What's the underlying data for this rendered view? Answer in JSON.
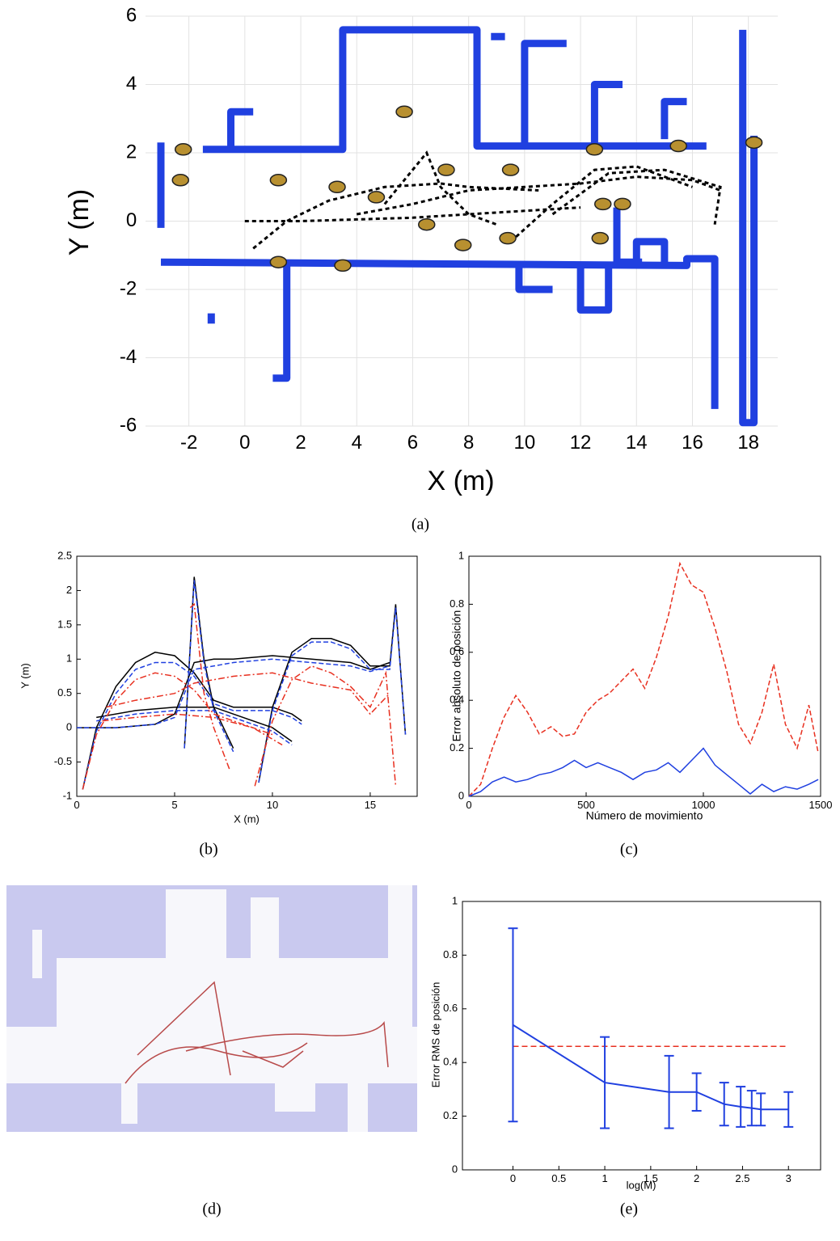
{
  "chart_data": [
    {
      "type": "map",
      "caption": "(a)",
      "xlabel": "X (m)",
      "ylabel": "Y (m)",
      "xlim": [
        -3.55,
        19.05
      ],
      "ylim": [
        -6,
        6
      ],
      "xticks": [
        -2,
        0,
        2,
        4,
        6,
        8,
        10,
        12,
        14,
        16,
        18
      ],
      "yticks": [
        -6,
        -4,
        -2,
        0,
        2,
        4,
        6
      ],
      "grid": true,
      "wall_color": "#2040e0",
      "trajectory_color": "#000000",
      "landmark_color": "#b89030",
      "walls": [
        {
          "x": [
            -1.5,
            3.5,
            3.5,
            8.3,
            8.3,
            16.5
          ],
          "y": [
            2.1,
            2.1,
            5.6,
            5.6,
            2.2,
            2.2
          ]
        },
        {
          "x": [
            -3,
            15.8,
            15.8,
            16.8,
            16.8
          ],
          "y": [
            -1.2,
            -1.3,
            -1.1,
            -1.1,
            -5.5
          ]
        },
        {
          "x": [
            -3,
            -3
          ],
          "y": [
            2.3,
            -0.2
          ]
        },
        {
          "x": [
            1.5,
            1.5,
            1.0
          ],
          "y": [
            -1.3,
            -4.6,
            -4.6
          ]
        },
        {
          "x": [
            -0.5,
            -0.5,
            0.3
          ],
          "y": [
            2.0,
            3.2,
            3.2
          ]
        },
        {
          "x": [
            17.8,
            17.8,
            18.2,
            18.2
          ],
          "y": [
            5.6,
            -5.9,
            -5.9,
            2.5
          ]
        },
        {
          "x": [
            10,
            10,
            11.5
          ],
          "y": [
            2.2,
            5.2,
            5.2
          ]
        },
        {
          "x": [
            12.5,
            12.5,
            13.5
          ],
          "y": [
            2.2,
            4,
            4
          ]
        },
        {
          "x": [
            15,
            15,
            15.8
          ],
          "y": [
            2.4,
            3.5,
            3.5
          ]
        },
        {
          "x": [
            8.8,
            9.3
          ],
          "y": [
            5.4,
            5.4
          ]
        },
        {
          "x": [
            12,
            12,
            13,
            13
          ],
          "y": [
            -1.3,
            -2.6,
            -2.6,
            -1.3
          ]
        },
        {
          "x": [
            9.8,
            9.8,
            11
          ],
          "y": [
            -1.3,
            -2,
            -2
          ]
        },
        {
          "x": [
            14,
            14,
            15,
            15
          ],
          "y": [
            -1.3,
            -0.6,
            -0.6,
            -1.3
          ]
        },
        {
          "x": [
            13.3,
            13.3,
            14.2
          ],
          "y": [
            0.4,
            -1.2,
            -1.2
          ]
        },
        {
          "x": [
            -1.2,
            -1.2
          ],
          "y": [
            -2.7,
            -3
          ]
        }
      ],
      "trajectories": [
        {
          "x": [
            0,
            2,
            4,
            6,
            8,
            10,
            12
          ],
          "y": [
            0,
            0,
            0.05,
            0.1,
            0.2,
            0.3,
            0.4
          ]
        },
        {
          "x": [
            0.3,
            1.5,
            3,
            5,
            7,
            8,
            10.5
          ],
          "y": [
            -0.8,
            0,
            0.6,
            1,
            1.1,
            1,
            0.9
          ]
        },
        {
          "x": [
            4,
            6,
            8,
            10,
            12,
            14,
            16,
            17
          ],
          "y": [
            0.2,
            0.5,
            0.9,
            1,
            1.1,
            1.3,
            1.2,
            0.9
          ]
        },
        {
          "x": [
            5,
            6.5,
            7,
            8,
            9
          ],
          "y": [
            0.5,
            2,
            1,
            0.2,
            -0.1
          ]
        },
        {
          "x": [
            11,
            12,
            13,
            15,
            17,
            16.8
          ],
          "y": [
            0.2,
            0.8,
            1.4,
            1.5,
            1,
            -0.1
          ]
        },
        {
          "x": [
            9.5,
            11,
            12.5,
            14,
            16
          ],
          "y": [
            -0.6,
            0.5,
            1.5,
            1.6,
            1
          ]
        }
      ],
      "landmarks": {
        "x": [
          -2.2,
          -2.3,
          1.2,
          3.5,
          3.3,
          4.7,
          7.2,
          9.5,
          7.8,
          9.4,
          12.8,
          13.5,
          12.7,
          15.5,
          18.2,
          6.5,
          1.2,
          12.5,
          5.7
        ],
        "y": [
          2.1,
          1.2,
          -1.2,
          -1.3,
          1.0,
          0.7,
          1.5,
          1.5,
          -0.7,
          -0.5,
          0.5,
          0.5,
          -0.5,
          2.2,
          2.3,
          -0.1,
          1.2,
          2.1,
          3.2
        ]
      }
    },
    {
      "type": "line",
      "caption": "(b)",
      "xlabel": "X (m)",
      "ylabel": "Y (m)",
      "xlim": [
        0,
        17.4
      ],
      "ylim": [
        -1,
        2.5
      ],
      "xticks": [
        0,
        5,
        10,
        15
      ],
      "yticks": [
        -1,
        -0.5,
        0,
        0.5,
        1,
        1.5,
        2,
        2.5
      ],
      "series": [
        {
          "color": "#000000",
          "dash": "solid",
          "x": [
            0.3,
            1,
            2,
            3,
            4,
            5,
            6,
            7,
            8,
            9,
            10,
            11,
            11.5,
            null,
            0,
            2,
            4,
            5,
            6,
            7,
            8,
            10,
            12,
            14,
            15,
            16,
            null,
            9.3,
            10,
            11,
            12,
            13,
            14,
            15,
            16,
            16.3,
            16.8,
            null,
            5.5,
            6,
            6.5,
            7,
            8,
            null,
            1,
            3,
            5,
            7,
            8,
            10,
            11
          ],
          "y": [
            -0.9,
            0,
            0.6,
            0.95,
            1.1,
            1.05,
            0.8,
            0.4,
            0.3,
            0.3,
            0.3,
            0.2,
            0.1,
            null,
            0,
            0,
            0.05,
            0.2,
            0.95,
            1.0,
            1.0,
            1.05,
            1.0,
            0.95,
            0.85,
            0.95,
            null,
            -0.8,
            0.3,
            1.1,
            1.3,
            1.3,
            1.2,
            0.9,
            0.9,
            1.8,
            -0.1,
            null,
            -0.3,
            2.2,
            1.0,
            0.3,
            -0.3,
            null,
            0.15,
            0.25,
            0.3,
            0.3,
            0.2,
            0,
            -0.2
          ]
        },
        {
          "color": "#2040e0",
          "dash": "dashed",
          "x": [
            0.3,
            1,
            2,
            3,
            4,
            5,
            6,
            7,
            8,
            9,
            10,
            11,
            11.5,
            null,
            0,
            2,
            4,
            5,
            6,
            7,
            8,
            10,
            12,
            14,
            15,
            16,
            null,
            9.3,
            10,
            11,
            12,
            13,
            14,
            15,
            16,
            16.3,
            16.8,
            null,
            5.5,
            6,
            6.5,
            7,
            8,
            null,
            1,
            3,
            5,
            7,
            8,
            10,
            11
          ],
          "y": [
            -0.9,
            -0.05,
            0.5,
            0.85,
            0.95,
            0.95,
            0.75,
            0.35,
            0.25,
            0.25,
            0.25,
            0.15,
            0.05,
            null,
            0,
            0,
            0.05,
            0.15,
            0.85,
            0.9,
            0.95,
            1.0,
            0.95,
            0.9,
            0.82,
            0.9,
            null,
            -0.8,
            0.25,
            1.05,
            1.25,
            1.25,
            1.15,
            0.85,
            0.85,
            1.75,
            -0.1,
            null,
            -0.3,
            2.15,
            0.95,
            0.25,
            -0.35,
            null,
            0.1,
            0.2,
            0.25,
            0.25,
            0.15,
            -0.05,
            -0.25
          ]
        },
        {
          "color": "#e83020",
          "dash": "dashdot",
          "x": [
            0.3,
            1,
            2,
            3,
            4,
            5,
            6,
            7,
            8,
            9,
            10,
            null,
            1.5,
            3,
            5,
            6,
            7,
            8,
            10,
            12,
            14,
            15,
            16,
            null,
            9.1,
            10,
            11,
            12,
            13,
            14,
            15,
            15.8,
            16.3,
            null,
            5.8,
            6,
            6.5,
            7,
            7.8,
            null,
            1.3,
            3,
            5,
            7,
            9,
            10.5
          ],
          "y": [
            -0.9,
            -0.1,
            0.4,
            0.7,
            0.8,
            0.75,
            0.55,
            0.2,
            0.1,
            0,
            -0.1,
            null,
            0.3,
            0.4,
            0.5,
            0.65,
            0.7,
            0.75,
            0.8,
            0.65,
            0.55,
            0.2,
            0.5,
            null,
            -0.85,
            0.1,
            0.7,
            0.9,
            0.8,
            0.6,
            0.3,
            0.8,
            -0.85,
            null,
            1.75,
            1.8,
            0.5,
            0,
            -0.6,
            null,
            0.1,
            0.15,
            0.2,
            0.15,
            0,
            -0.25
          ]
        }
      ]
    },
    {
      "type": "line",
      "caption": "(c)",
      "xlabel": "Número de movimiento",
      "ylabel": "Error absoluto de posición",
      "xlim": [
        0,
        1500
      ],
      "ylim": [
        0,
        1
      ],
      "xticks": [
        0,
        500,
        1000,
        1500
      ],
      "yticks": [
        0,
        0.2,
        0.4,
        0.6,
        0.8,
        1
      ],
      "series": [
        {
          "color": "#e83020",
          "dash": "dashed",
          "x": [
            0,
            50,
            100,
            150,
            200,
            250,
            300,
            350,
            400,
            450,
            500,
            550,
            600,
            650,
            700,
            750,
            800,
            850,
            900,
            950,
            1000,
            1050,
            1100,
            1150,
            1200,
            1250,
            1300,
            1350,
            1400,
            1450,
            1490
          ],
          "y": [
            0,
            0.05,
            0.2,
            0.33,
            0.42,
            0.35,
            0.26,
            0.29,
            0.25,
            0.26,
            0.35,
            0.4,
            0.43,
            0.48,
            0.53,
            0.45,
            0.58,
            0.75,
            0.97,
            0.88,
            0.85,
            0.7,
            0.52,
            0.3,
            0.22,
            0.35,
            0.55,
            0.3,
            0.2,
            0.38,
            0.18
          ]
        },
        {
          "color": "#2040e0",
          "dash": "solid",
          "x": [
            0,
            50,
            100,
            150,
            200,
            250,
            300,
            350,
            400,
            450,
            500,
            550,
            600,
            650,
            700,
            750,
            800,
            850,
            900,
            950,
            1000,
            1050,
            1100,
            1150,
            1200,
            1250,
            1300,
            1350,
            1400,
            1450,
            1490
          ],
          "y": [
            0,
            0.02,
            0.06,
            0.08,
            0.06,
            0.07,
            0.09,
            0.1,
            0.12,
            0.15,
            0.12,
            0.14,
            0.12,
            0.1,
            0.07,
            0.1,
            0.11,
            0.14,
            0.1,
            0.15,
            0.2,
            0.13,
            0.09,
            0.05,
            0.01,
            0.05,
            0.02,
            0.04,
            0.03,
            0.05,
            0.07
          ]
        }
      ]
    },
    {
      "type": "image",
      "caption": "(d)"
    },
    {
      "type": "errorbar",
      "caption": "(e)",
      "xlabel": "log(M)",
      "ylabel": "Error RMS de posición",
      "xlim": [
        -0.55,
        3.35
      ],
      "ylim": [
        0,
        1
      ],
      "xticks": [
        0,
        0.5,
        1,
        1.5,
        2,
        2.5,
        3
      ],
      "yticks": [
        0,
        0.2,
        0.4,
        0.6,
        0.8,
        1
      ],
      "color": "#2040e0",
      "x": [
        0,
        1,
        1.7,
        2,
        2.3,
        2.48,
        2.6,
        2.7,
        3
      ],
      "values": [
        0.54,
        0.325,
        0.29,
        0.29,
        0.245,
        0.235,
        0.23,
        0.225,
        0.225
      ],
      "errors": [
        0.36,
        0.17,
        0.135,
        0.07,
        0.08,
        0.075,
        0.065,
        0.06,
        0.065
      ],
      "reference_y": 0.46,
      "reference_x": [
        0,
        3
      ],
      "reference_color": "#e83020"
    }
  ]
}
